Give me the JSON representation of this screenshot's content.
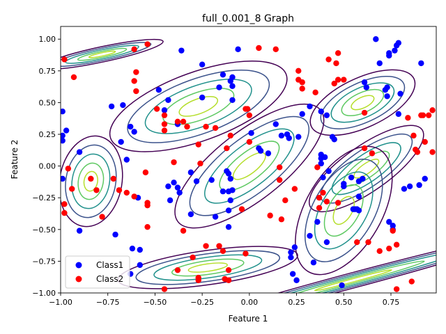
{
  "chart_data": {
    "type": "scatter",
    "title": "full_0.001_8 Graph",
    "xlabel": "Feature 1",
    "ylabel": "Feature 2",
    "xlim": [
      -1.0,
      0.99
    ],
    "ylim": [
      -1.0,
      1.1
    ],
    "xticks": [
      -1.0,
      -0.75,
      -0.5,
      -0.25,
      0.0,
      0.25,
      0.5,
      0.75
    ],
    "xtick_labels": [
      "−1.00",
      "−0.75",
      "−0.50",
      "−0.25",
      "0.00",
      "0.25",
      "0.50",
      "0.75"
    ],
    "yticks": [
      -1.0,
      -0.75,
      -0.5,
      -0.25,
      0.0,
      0.25,
      0.5,
      0.75,
      1.0
    ],
    "ytick_labels": [
      "−1.00",
      "−0.75",
      "−0.50",
      "−0.25",
      "0.00",
      "0.25",
      "0.50",
      "0.75",
      "1.00"
    ],
    "grid": false,
    "legend_position": "lower-left",
    "contour_colors": [
      "#440154",
      "#3b528b",
      "#21918c",
      "#5ec962",
      "#b5de2b"
    ],
    "contour_components": [
      {
        "center": [
          -0.27,
          0.47
        ],
        "sx": 0.33,
        "sy": 0.18,
        "angle": 20
      },
      {
        "center": [
          0.6,
          0.5
        ],
        "sx": 0.2,
        "sy": 0.13,
        "angle": 25
      },
      {
        "center": [
          -0.78,
          0.88
        ],
        "sx": 0.22,
        "sy": 0.04,
        "angle": 12
      },
      {
        "center": [
          0.0,
          0.0
        ],
        "sx": 0.32,
        "sy": 0.18,
        "angle": 38
      },
      {
        "center": [
          -0.84,
          -0.12
        ],
        "sx": 0.11,
        "sy": 0.24,
        "angle": -10
      },
      {
        "center": [
          0.62,
          -0.02
        ],
        "sx": 0.24,
        "sy": 0.12,
        "angle": 35
      },
      {
        "center": [
          0.5,
          -0.35
        ],
        "sx": 0.25,
        "sy": 0.2,
        "angle": 60
      },
      {
        "center": [
          -0.22,
          -0.8
        ],
        "sx": 0.32,
        "sy": 0.09,
        "angle": 8
      },
      {
        "center": [
          0.55,
          -0.9
        ],
        "sx": 0.65,
        "sy": 0.04,
        "angle": 15
      }
    ],
    "series": [
      {
        "name": "Class1",
        "color": "#0000ff",
        "points": [
          [
            -0.99,
            0.43
          ],
          [
            -0.99,
            0.24
          ],
          [
            -0.99,
            0.2
          ],
          [
            -0.97,
            0.28
          ],
          [
            -0.99,
            -0.1
          ],
          [
            -0.9,
            0.11
          ],
          [
            -0.9,
            -0.51
          ],
          [
            -0.71,
            -0.54
          ],
          [
            -0.73,
            0.47
          ],
          [
            -0.67,
            0.48
          ],
          [
            -0.68,
            0.19
          ],
          [
            -0.65,
            0.05
          ],
          [
            -0.63,
            0.31
          ],
          [
            -0.61,
            0.27
          ],
          [
            -0.59,
            -0.25
          ],
          [
            -0.62,
            -0.65
          ],
          [
            -0.58,
            -0.66
          ],
          [
            -0.63,
            -0.85
          ],
          [
            -0.58,
            -0.78
          ],
          [
            -0.48,
            0.6
          ],
          [
            -0.43,
            0.52
          ],
          [
            -0.45,
            0.44
          ],
          [
            -0.36,
            0.91
          ],
          [
            -0.25,
            0.8
          ],
          [
            -0.38,
            0.33
          ],
          [
            -0.25,
            0.54
          ],
          [
            -0.43,
            -0.16
          ],
          [
            -0.4,
            -0.13
          ],
          [
            -0.42,
            -0.27
          ],
          [
            -0.38,
            -0.17
          ],
          [
            -0.37,
            -0.21
          ],
          [
            -0.31,
            -0.05
          ],
          [
            -0.28,
            -0.12
          ],
          [
            -0.31,
            -0.38
          ],
          [
            -0.16,
            0.62
          ],
          [
            -0.14,
            0.72
          ],
          [
            -0.1,
            0.67
          ],
          [
            -0.09,
            0.7
          ],
          [
            -0.09,
            0.63
          ],
          [
            -0.09,
            0.52
          ],
          [
            -0.06,
            0.92
          ],
          [
            -0.2,
            -0.11
          ],
          [
            -0.18,
            -0.4
          ],
          [
            -0.14,
            -0.2
          ],
          [
            -0.12,
            -0.04
          ],
          [
            -0.11,
            -0.06
          ],
          [
            -0.11,
            -0.2
          ],
          [
            -0.11,
            -0.35
          ],
          [
            -0.1,
            -0.27
          ],
          [
            -0.1,
            -0.1
          ],
          [
            -0.09,
            -0.19
          ],
          [
            -0.11,
            -0.48
          ],
          [
            0.01,
            0.26
          ],
          [
            0.05,
            0.14
          ],
          [
            0.06,
            0.12
          ],
          [
            0.1,
            0.1
          ],
          [
            0.14,
            0.33
          ],
          [
            0.17,
            0.24
          ],
          [
            0.2,
            0.25
          ],
          [
            0.21,
            0.22
          ],
          [
            0.26,
            0.23
          ],
          [
            0.28,
            0.41
          ],
          [
            0.32,
            0.47
          ],
          [
            0.38,
            0.43
          ],
          [
            0.41,
            0.4
          ],
          [
            0.42,
            -0.04
          ],
          [
            0.38,
            0.06
          ],
          [
            0.38,
            0.02
          ],
          [
            0.4,
            0.07
          ],
          [
            0.39,
            -0.09
          ],
          [
            0.45,
            0.21
          ],
          [
            0.44,
            0.23
          ],
          [
            0.38,
            0.09
          ],
          [
            0.5,
            -0.14
          ],
          [
            0.5,
            -0.16
          ],
          [
            0.54,
            -0.09
          ],
          [
            0.58,
            -0.12
          ],
          [
            0.6,
            -0.1
          ],
          [
            0.62,
            0.62
          ],
          [
            0.61,
            0.66
          ],
          [
            0.67,
            1.0
          ],
          [
            0.69,
            0.81
          ],
          [
            0.72,
            0.6
          ],
          [
            0.73,
            0.62
          ],
          [
            0.74,
            0.89
          ],
          [
            0.74,
            0.87
          ],
          [
            0.77,
            0.91
          ],
          [
            0.78,
            0.95
          ],
          [
            0.79,
            0.97
          ],
          [
            0.8,
            0.57
          ],
          [
            0.73,
            0.55
          ],
          [
            0.79,
            0.41
          ],
          [
            0.82,
            -0.18
          ],
          [
            0.85,
            -0.16
          ],
          [
            0.9,
            -0.15
          ],
          [
            0.91,
            0.81
          ],
          [
            0.93,
            -0.1
          ],
          [
            0.74,
            -0.44
          ],
          [
            0.76,
            -0.47
          ],
          [
            0.76,
            -0.5
          ],
          [
            0.55,
            -0.34
          ],
          [
            0.56,
            -0.34
          ],
          [
            0.57,
            -0.34
          ],
          [
            0.58,
            -0.24
          ],
          [
            0.58,
            -0.35
          ],
          [
            0.24,
            -0.64
          ],
          [
            0.22,
            -0.68
          ],
          [
            0.22,
            -0.72
          ],
          [
            0.23,
            -0.85
          ],
          [
            0.25,
            -0.9
          ],
          [
            0.32,
            -0.55
          ],
          [
            0.36,
            -0.44
          ],
          [
            0.41,
            -0.6
          ],
          [
            0.34,
            -0.76
          ],
          [
            0.49,
            -0.94
          ]
        ]
      },
      {
        "name": "Class2",
        "color": "#ff0000",
        "points": [
          [
            -0.98,
            0.84
          ],
          [
            -0.93,
            0.7
          ],
          [
            -0.96,
            -0.02
          ],
          [
            -0.94,
            -0.18
          ],
          [
            -0.98,
            -0.3
          ],
          [
            -0.98,
            -0.37
          ],
          [
            -0.84,
            -0.1
          ],
          [
            -0.81,
            -0.19
          ],
          [
            -0.78,
            -0.4
          ],
          [
            -0.72,
            -0.1
          ],
          [
            -0.69,
            -0.19
          ],
          [
            -0.65,
            -0.21
          ],
          [
            -0.61,
            -0.24
          ],
          [
            -0.54,
            -0.29
          ],
          [
            -0.54,
            -0.31
          ],
          [
            -0.54,
            -0.48
          ],
          [
            -0.55,
            -0.05
          ],
          [
            -0.61,
            0.92
          ],
          [
            -0.54,
            0.96
          ],
          [
            -0.61,
            0.67
          ],
          [
            -0.6,
            0.74
          ],
          [
            -0.6,
            0.59
          ],
          [
            -0.49,
            0.45
          ],
          [
            -0.45,
            0.4
          ],
          [
            -0.45,
            0.33
          ],
          [
            -0.45,
            0.28
          ],
          [
            -0.38,
            0.35
          ],
          [
            -0.35,
            0.35
          ],
          [
            -0.33,
            0.31
          ],
          [
            -0.27,
            0.17
          ],
          [
            -0.23,
            0.31
          ],
          [
            -0.18,
            0.3
          ],
          [
            -0.26,
            0.02
          ],
          [
            -0.4,
            0.03
          ],
          [
            -0.35,
            -0.51
          ],
          [
            -0.1,
            0.24
          ],
          [
            -0.12,
            0.14
          ],
          [
            -0.02,
            0.45
          ],
          [
            -0.01,
            0.45
          ],
          [
            0.0,
            0.4
          ],
          [
            0.0,
            0.19
          ],
          [
            -0.04,
            -0.34
          ],
          [
            0.05,
            0.93
          ],
          [
            0.14,
            0.92
          ],
          [
            0.16,
            -0.01
          ],
          [
            0.16,
            -0.11
          ],
          [
            0.19,
            -0.27
          ],
          [
            0.24,
            -0.18
          ],
          [
            0.11,
            -0.39
          ],
          [
            0.17,
            -0.42
          ],
          [
            0.26,
            0.75
          ],
          [
            0.26,
            0.68
          ],
          [
            0.28,
            0.66
          ],
          [
            0.28,
            0.61
          ],
          [
            0.35,
            0.58
          ],
          [
            0.36,
            -0.01
          ],
          [
            0.37,
            -0.25
          ],
          [
            0.37,
            -0.33
          ],
          [
            0.39,
            -0.21
          ],
          [
            0.41,
            -0.28
          ],
          [
            0.42,
            0.84
          ],
          [
            0.45,
            0.65
          ],
          [
            0.47,
            0.68
          ],
          [
            0.47,
            0.89
          ],
          [
            0.46,
            0.81
          ],
          [
            0.5,
            0.68
          ],
          [
            0.47,
            -0.29
          ],
          [
            0.61,
            0.42
          ],
          [
            0.61,
            0.14
          ],
          [
            0.65,
            0.1
          ],
          [
            0.57,
            -0.6
          ],
          [
            0.63,
            -0.6
          ],
          [
            0.69,
            -0.67
          ],
          [
            0.76,
            -0.51
          ],
          [
            0.84,
            0.38
          ],
          [
            0.87,
            0.24
          ],
          [
            0.88,
            0.13
          ],
          [
            0.89,
            0.11
          ],
          [
            0.91,
            0.4
          ],
          [
            0.92,
            0.4
          ],
          [
            0.93,
            0.19
          ],
          [
            0.95,
            0.4
          ],
          [
            0.97,
            0.44
          ],
          [
            0.97,
            0.11
          ],
          [
            0.78,
            -0.62
          ],
          [
            0.74,
            -0.65
          ],
          [
            0.78,
            -0.97
          ],
          [
            0.86,
            -0.91
          ],
          [
            -0.45,
            -0.97
          ],
          [
            -0.38,
            -0.82
          ],
          [
            -0.3,
            -0.72
          ],
          [
            -0.27,
            -0.88
          ],
          [
            -0.27,
            -0.9
          ],
          [
            -0.23,
            -0.63
          ],
          [
            -0.16,
            -0.63
          ],
          [
            -0.14,
            -0.67
          ],
          [
            -0.13,
            -0.89
          ],
          [
            -0.11,
            -0.82
          ],
          [
            -0.02,
            -0.69
          ],
          [
            -0.11,
            -0.9
          ]
        ]
      }
    ]
  }
}
